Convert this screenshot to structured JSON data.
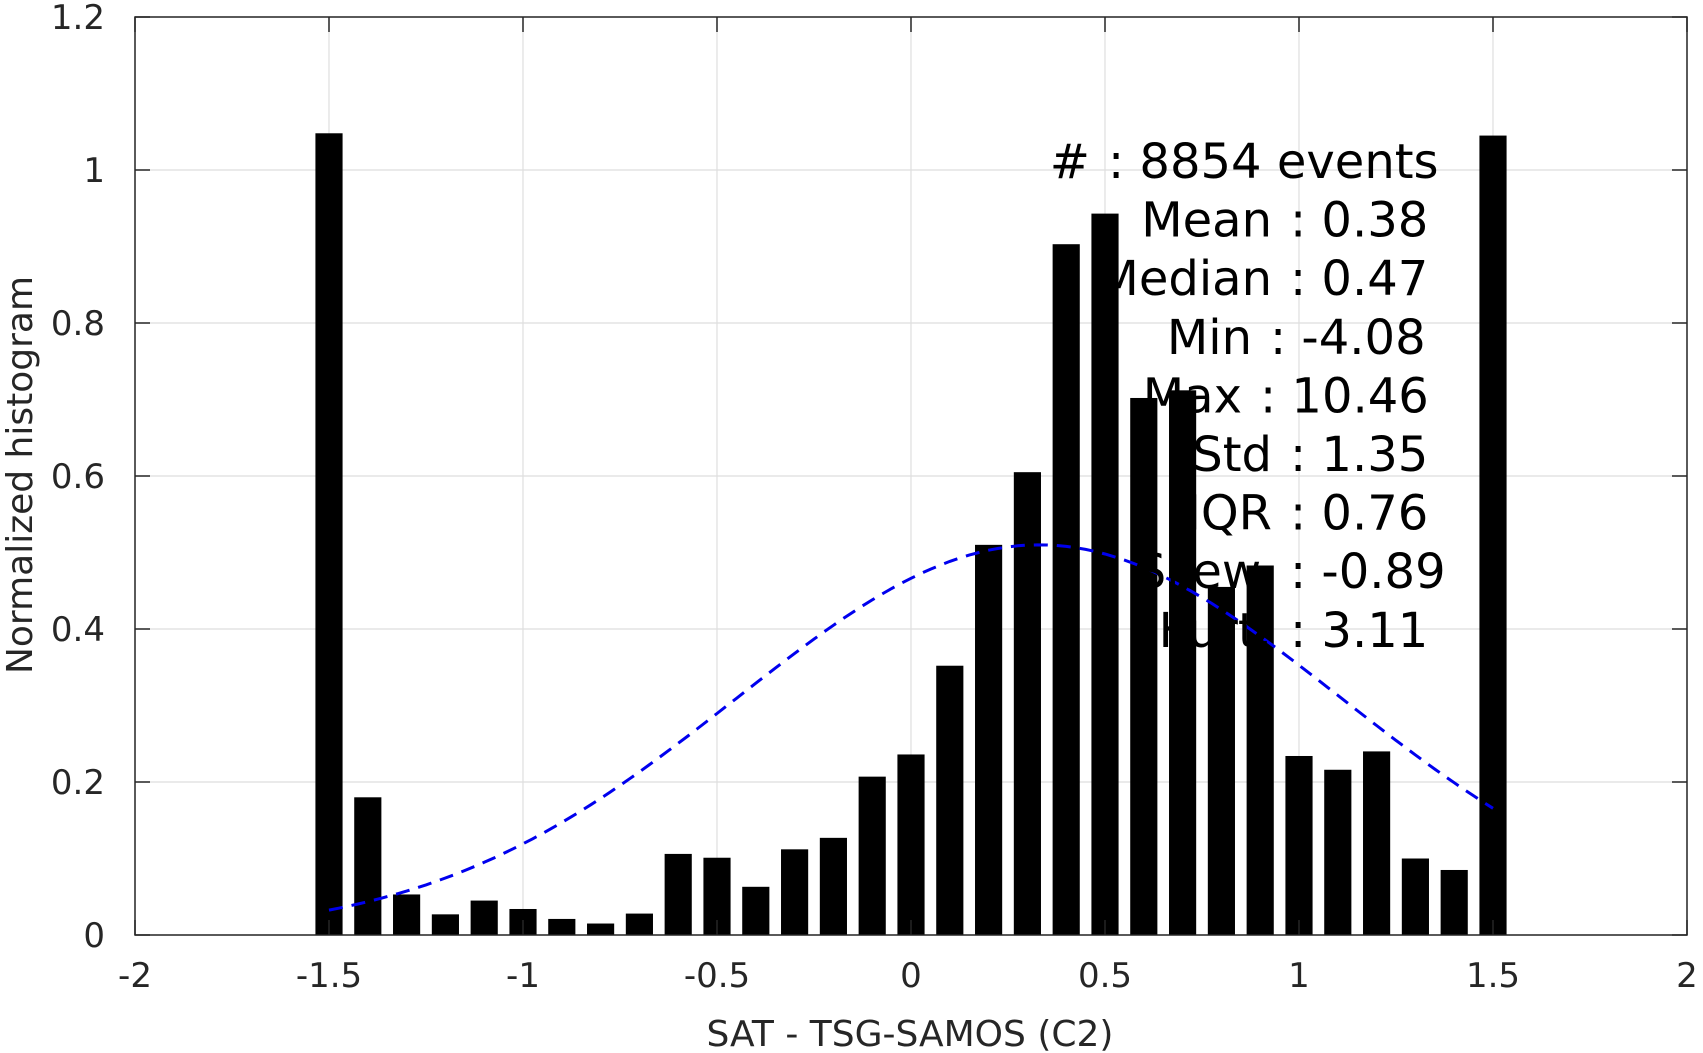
{
  "chart_data": {
    "type": "bar",
    "xlabel": "SAT - TSG-SAMOS (C2)",
    "ylabel": "Normalized histogram",
    "xlim": [
      -2,
      2
    ],
    "ylim": [
      0,
      1.2
    ],
    "xticks": [
      "-2",
      "-1.5",
      "-1",
      "-0.5",
      "0",
      "0.5",
      "1",
      "1.5",
      "2"
    ],
    "yticks": [
      "0",
      "0.2",
      "0.4",
      "0.6",
      "0.8",
      "1",
      "1.2"
    ],
    "grid": true,
    "bar_color": "#000000",
    "bar_width": 0.07,
    "bars": {
      "x": [
        -1.5,
        -1.4,
        -1.3,
        -1.2,
        -1.1,
        -1.0,
        -0.9,
        -0.8,
        -0.7,
        -0.6,
        -0.5,
        -0.4,
        -0.3,
        -0.2,
        -0.1,
        0.0,
        0.1,
        0.2,
        0.3,
        0.4,
        0.5,
        0.6,
        0.7,
        0.8,
        0.9,
        1.0,
        1.1,
        1.2,
        1.3,
        1.4,
        1.5
      ],
      "values": [
        1.048,
        0.18,
        0.053,
        0.027,
        0.045,
        0.034,
        0.021,
        0.015,
        0.028,
        0.106,
        0.101,
        0.063,
        0.112,
        0.127,
        0.207,
        0.236,
        0.352,
        0.51,
        0.605,
        0.903,
        0.943,
        0.702,
        0.712,
        0.455,
        0.483,
        0.234,
        0.216,
        0.24,
        0.1,
        0.085,
        1.045
      ]
    },
    "fit_curve": {
      "style": "dashed",
      "color": "#0000ee",
      "x_range": [
        -1.5,
        1.5
      ],
      "mean": 0.33,
      "peak": 0.51,
      "sigma": 0.78
    },
    "annotations": [
      {
        "label": "#",
        "value": ": 8854 events"
      },
      {
        "label": "Mean",
        "value": ": 0.38"
      },
      {
        "label": "Median",
        "value": ": 0.47"
      },
      {
        "label": "Min",
        "value": ": -4.08"
      },
      {
        "label": "Max",
        "value": ": 10.46"
      },
      {
        "label": "Std",
        "value": ": 1.35"
      },
      {
        "label": "IQR",
        "value": ": 0.76"
      },
      {
        "label": "Skew.",
        "value": ": -0.89"
      },
      {
        "label": "Kurt.",
        "value": ": 3.11"
      }
    ]
  }
}
